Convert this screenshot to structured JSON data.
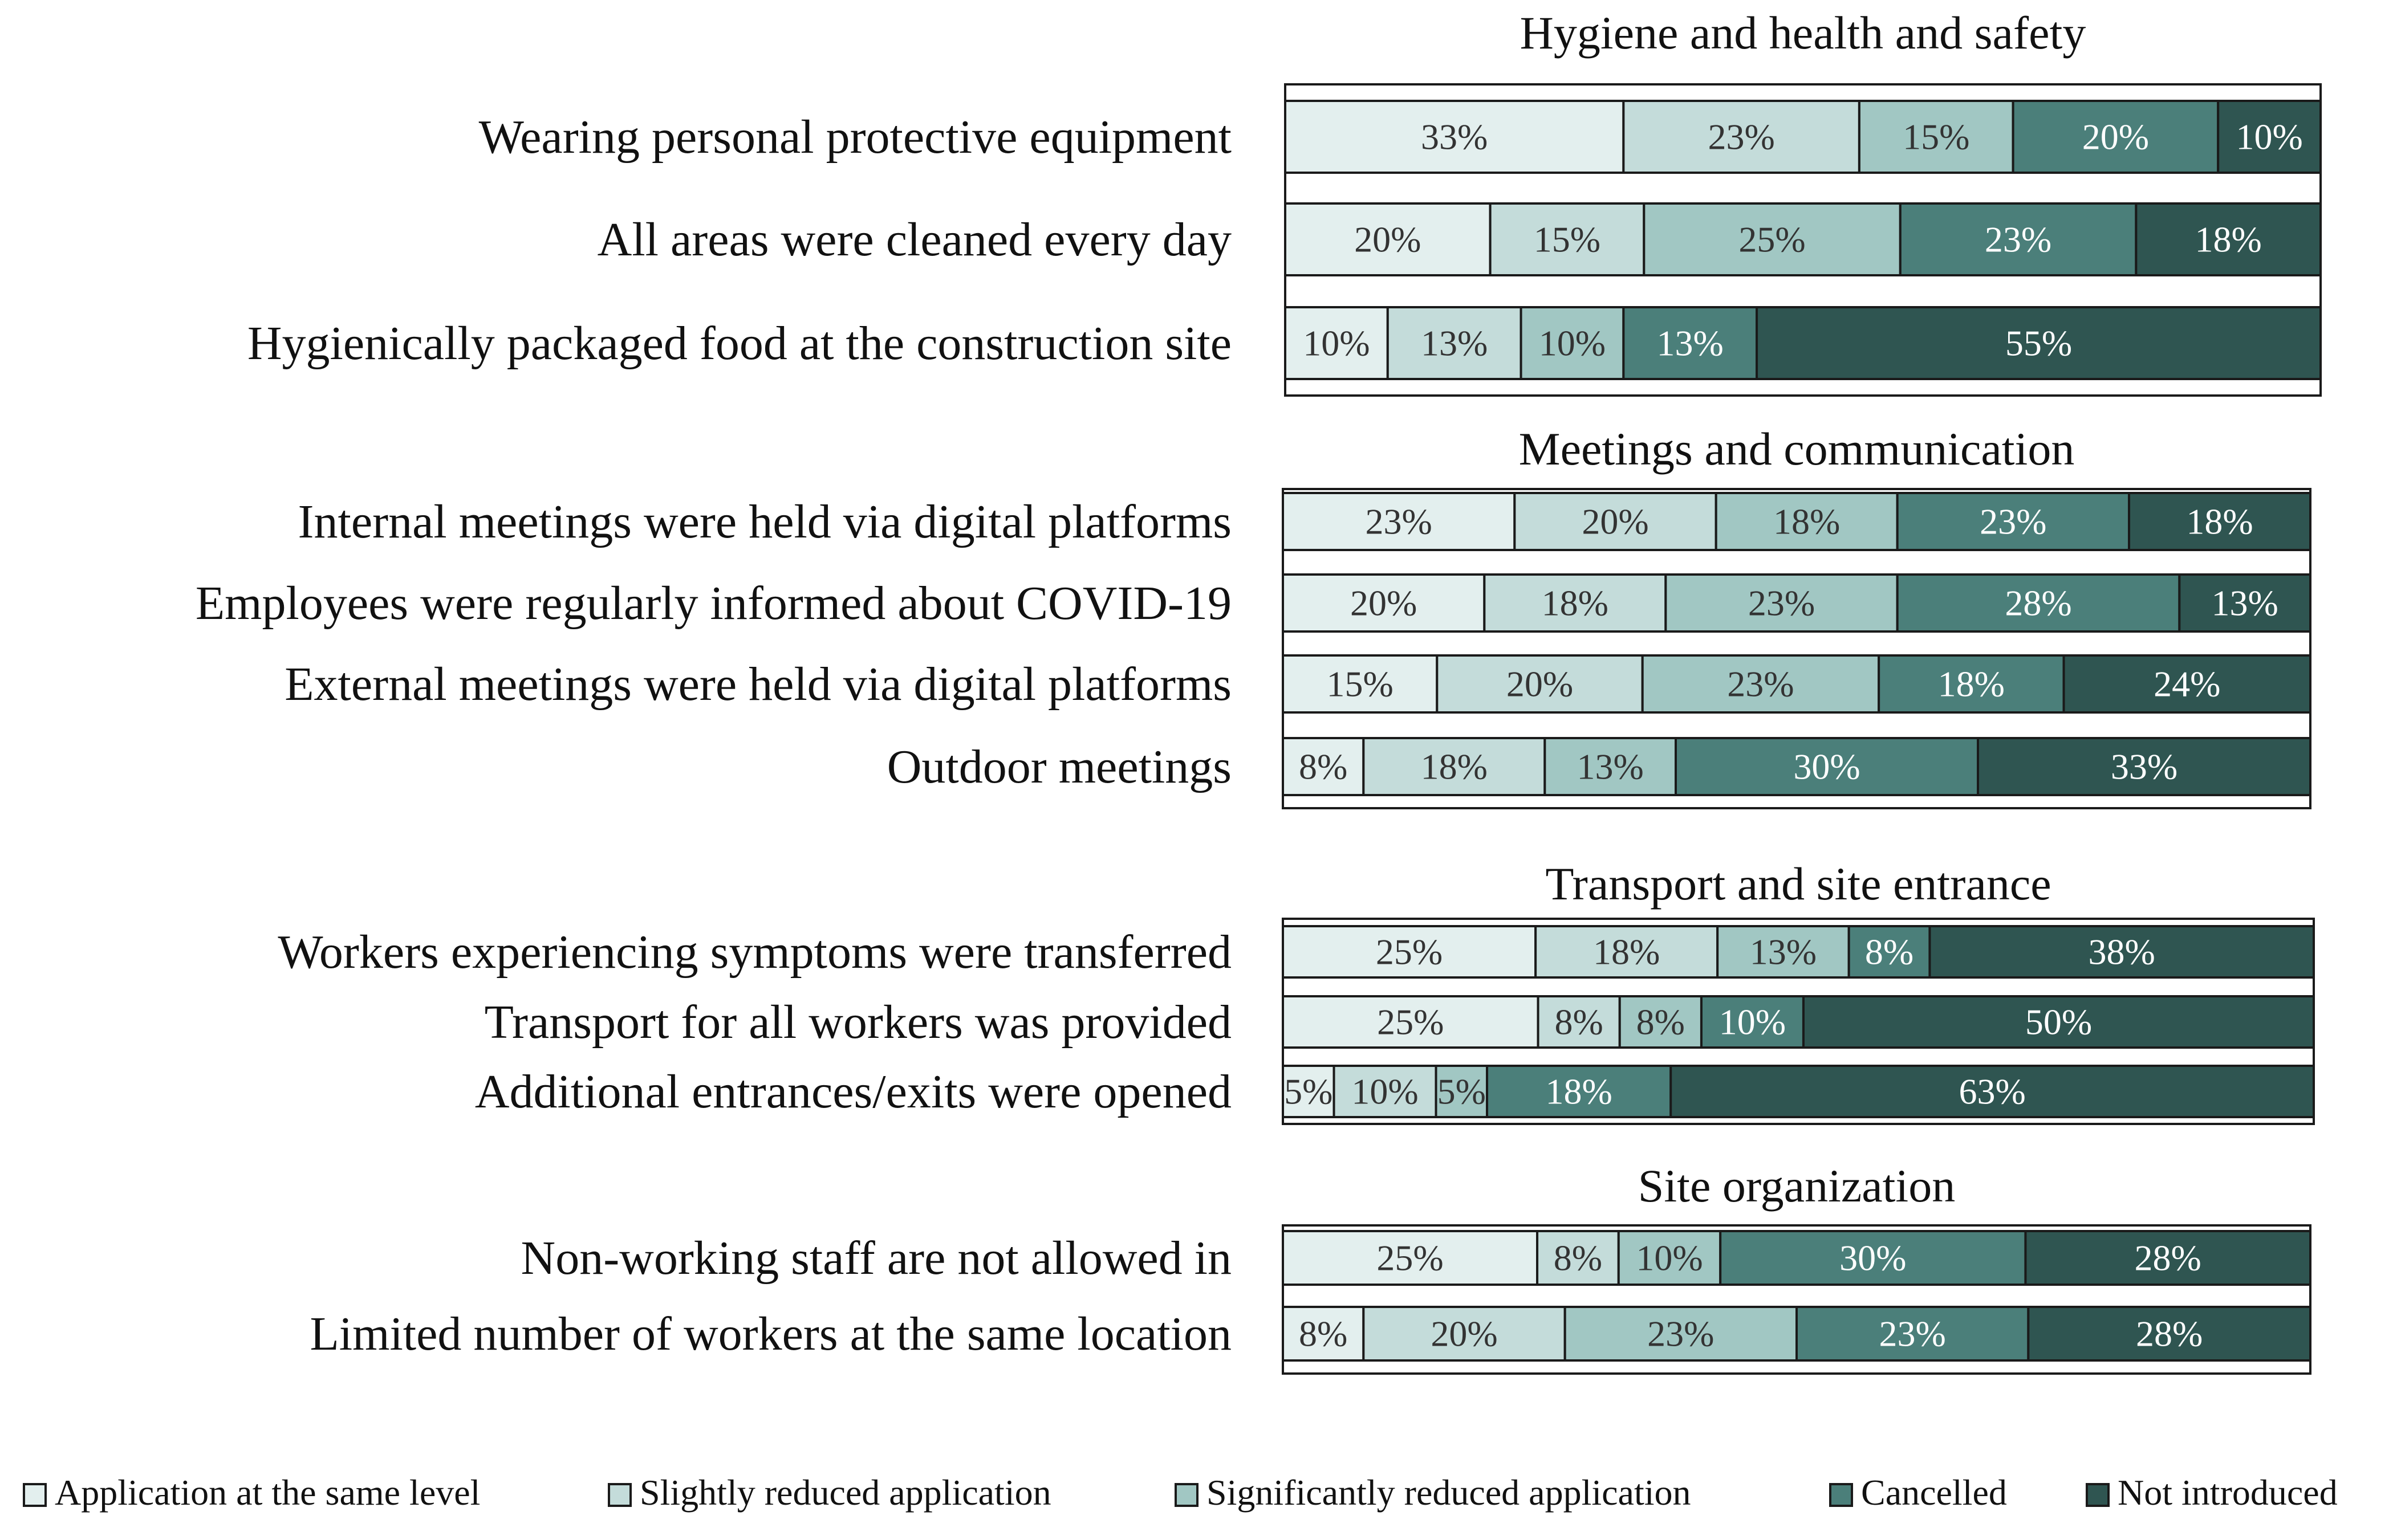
{
  "chart_data": {
    "type": "bar",
    "orientation": "horizontal",
    "stacked": true,
    "legend_position": "bottom",
    "legend": [
      "Application at the same level",
      "Slightly reduced application",
      "Significantly reduced application",
      "Cancelled",
      "Not introduced"
    ],
    "colors": [
      "#e3efee",
      "#c4dcda",
      "#a1c7c3",
      "#4b7f7a",
      "#2f5551"
    ],
    "label_colors": [
      "#333333",
      "#333333",
      "#333333",
      "#ffffff",
      "#ffffff"
    ],
    "panels": [
      {
        "title": "Hygiene and health and safety",
        "rows": [
          {
            "label": "Wearing personal protective equipment",
            "values": [
              33,
              23,
              15,
              20,
              10
            ],
            "value_labels": [
              "33%",
              "23%",
              "15%",
              "20%",
              "10%"
            ]
          },
          {
            "label": "All areas were cleaned every day",
            "values": [
              20,
              15,
              25,
              23,
              18
            ],
            "value_labels": [
              "20%",
              "15%",
              "25%",
              "23%",
              "18%"
            ]
          },
          {
            "label": "Hygienically packaged food at the construction site",
            "values": [
              10,
              13,
              10,
              13,
              55
            ],
            "value_labels": [
              "10%",
              "13%",
              "10%",
              "13%",
              "55%"
            ]
          }
        ]
      },
      {
        "title": "Meetings and communication",
        "rows": [
          {
            "label": "Internal meetings were held via digital platforms",
            "values": [
              23,
              20,
              18,
              23,
              18
            ],
            "value_labels": [
              "23%",
              "20%",
              "18%",
              "23%",
              "18%"
            ]
          },
          {
            "label": "Employees were regularly informed about COVID-19",
            "values": [
              20,
              18,
              23,
              28,
              13
            ],
            "value_labels": [
              "20%",
              "18%",
              "23%",
              "28%",
              "13%"
            ]
          },
          {
            "label": "External meetings were held via digital platforms",
            "values": [
              15,
              20,
              23,
              18,
              24
            ],
            "value_labels": [
              "15%",
              "20%",
              "23%",
              "18%",
              "24%"
            ]
          },
          {
            "label": "Outdoor meetings",
            "values": [
              8,
              18,
              13,
              30,
              33
            ],
            "value_labels": [
              "8%",
              "18%",
              "13%",
              "30%",
              "33%"
            ]
          }
        ]
      },
      {
        "title": "Transport and site entrance",
        "rows": [
          {
            "label": "Workers experiencing symptoms were transferred",
            "values": [
              25,
              18,
              13,
              8,
              38
            ],
            "value_labels": [
              "25%",
              "18%",
              "13%",
              "8%",
              "38%"
            ]
          },
          {
            "label": "Transport for all workers was provided",
            "values": [
              25,
              8,
              8,
              10,
              50
            ],
            "value_labels": [
              "25%",
              "8%",
              "8%",
              "10%",
              "50%"
            ]
          },
          {
            "label": "Additional entrances/exits were opened",
            "values": [
              5,
              10,
              5,
              18,
              63
            ],
            "value_labels": [
              "5%",
              "10%",
              "5%",
              "18%",
              "63%"
            ]
          }
        ]
      },
      {
        "title": "Site organization",
        "rows": [
          {
            "label": "Non-working staff are not allowed in",
            "values": [
              25,
              8,
              10,
              30,
              28
            ],
            "value_labels": [
              "25%",
              "8%",
              "10%",
              "30%",
              "28%"
            ]
          },
          {
            "label": "Limited number of workers at the same location",
            "values": [
              8,
              20,
              23,
              23,
              28
            ],
            "value_labels": [
              "8%",
              "20%",
              "23%",
              "23%",
              "28%"
            ]
          }
        ]
      }
    ]
  }
}
